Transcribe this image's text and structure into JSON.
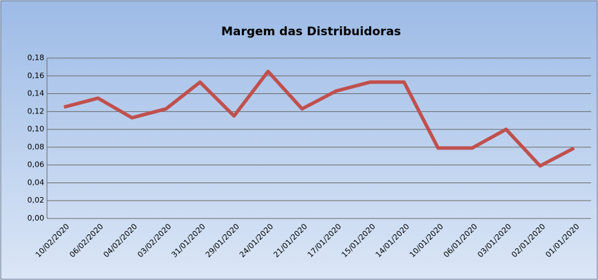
{
  "chart_data": {
    "type": "line",
    "title": "Margem das Distribuidoras",
    "categories": [
      "10/02/2020",
      "06/02/2020",
      "04/02/2020",
      "03/02/2020",
      "31/01/2020",
      "29/01/2020",
      "24/01/2020",
      "21/01/2020",
      "17/01/2020",
      "15/01/2020",
      "14/01/2020",
      "10/01/2020",
      "06/01/2020",
      "03/01/2020",
      "02/01/2020",
      "01/01/2020"
    ],
    "series": [
      {
        "color": "#c0504d",
        "values": [
          0.125,
          0.135,
          0.113,
          0.123,
          0.153,
          0.115,
          0.165,
          0.123,
          0.143,
          0.153,
          0.153,
          0.079,
          0.079,
          0.1,
          0.059,
          0.079
        ]
      }
    ],
    "ylim": [
      0,
      0.18
    ],
    "yticks": [
      {
        "value": 0,
        "label": "0,00"
      },
      {
        "value": 0.02,
        "label": "0,02"
      },
      {
        "value": 0.04,
        "label": "0,04"
      },
      {
        "value": 0.06,
        "label": "0,06"
      },
      {
        "value": 0.08,
        "label": "0,08"
      },
      {
        "value": 0.1,
        "label": "0,10"
      },
      {
        "value": 0.12,
        "label": "0,12"
      },
      {
        "value": 0.14,
        "label": "0,14"
      },
      {
        "value": 0.16,
        "label": "0,16"
      },
      {
        "value": 0.18,
        "label": "0,18"
      }
    ],
    "grid": true
  }
}
